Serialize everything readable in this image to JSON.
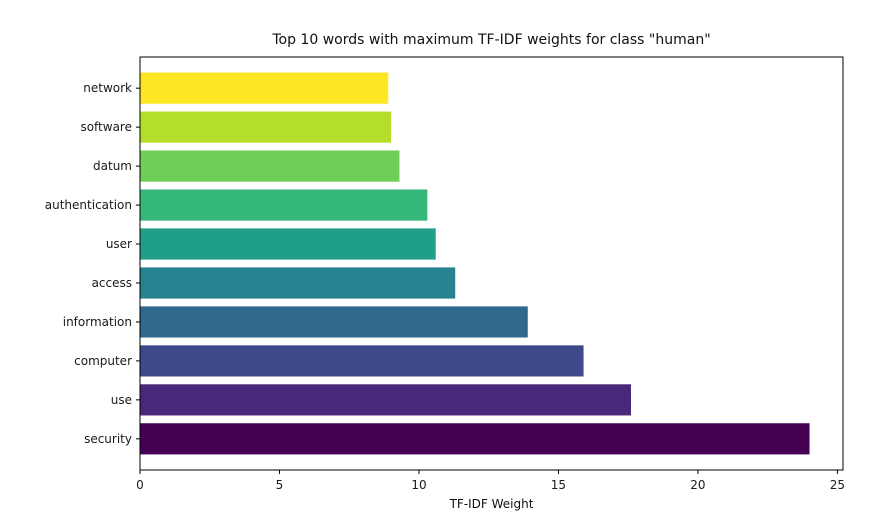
{
  "chart_data": {
    "type": "bar",
    "orientation": "horizontal",
    "title": "Top 10 words with maximum TF-IDF weights for class \"human\"",
    "xlabel": "TF-IDF Weight",
    "ylabel": "",
    "xlim": [
      0,
      25.2
    ],
    "xticks": [
      0,
      5,
      10,
      15,
      20,
      25
    ],
    "grid": false,
    "categories": [
      "security",
      "use",
      "computer",
      "information",
      "access",
      "user",
      "authentication",
      "datum",
      "software",
      "network"
    ],
    "values": [
      24.0,
      17.6,
      15.9,
      13.9,
      11.3,
      10.6,
      10.3,
      9.3,
      9.0,
      8.9
    ],
    "colors": [
      "#440154",
      "#482878",
      "#3e4989",
      "#31688e",
      "#26828e",
      "#1f9e89",
      "#35b779",
      "#6ece58",
      "#b5de2b",
      "#fde725"
    ]
  }
}
